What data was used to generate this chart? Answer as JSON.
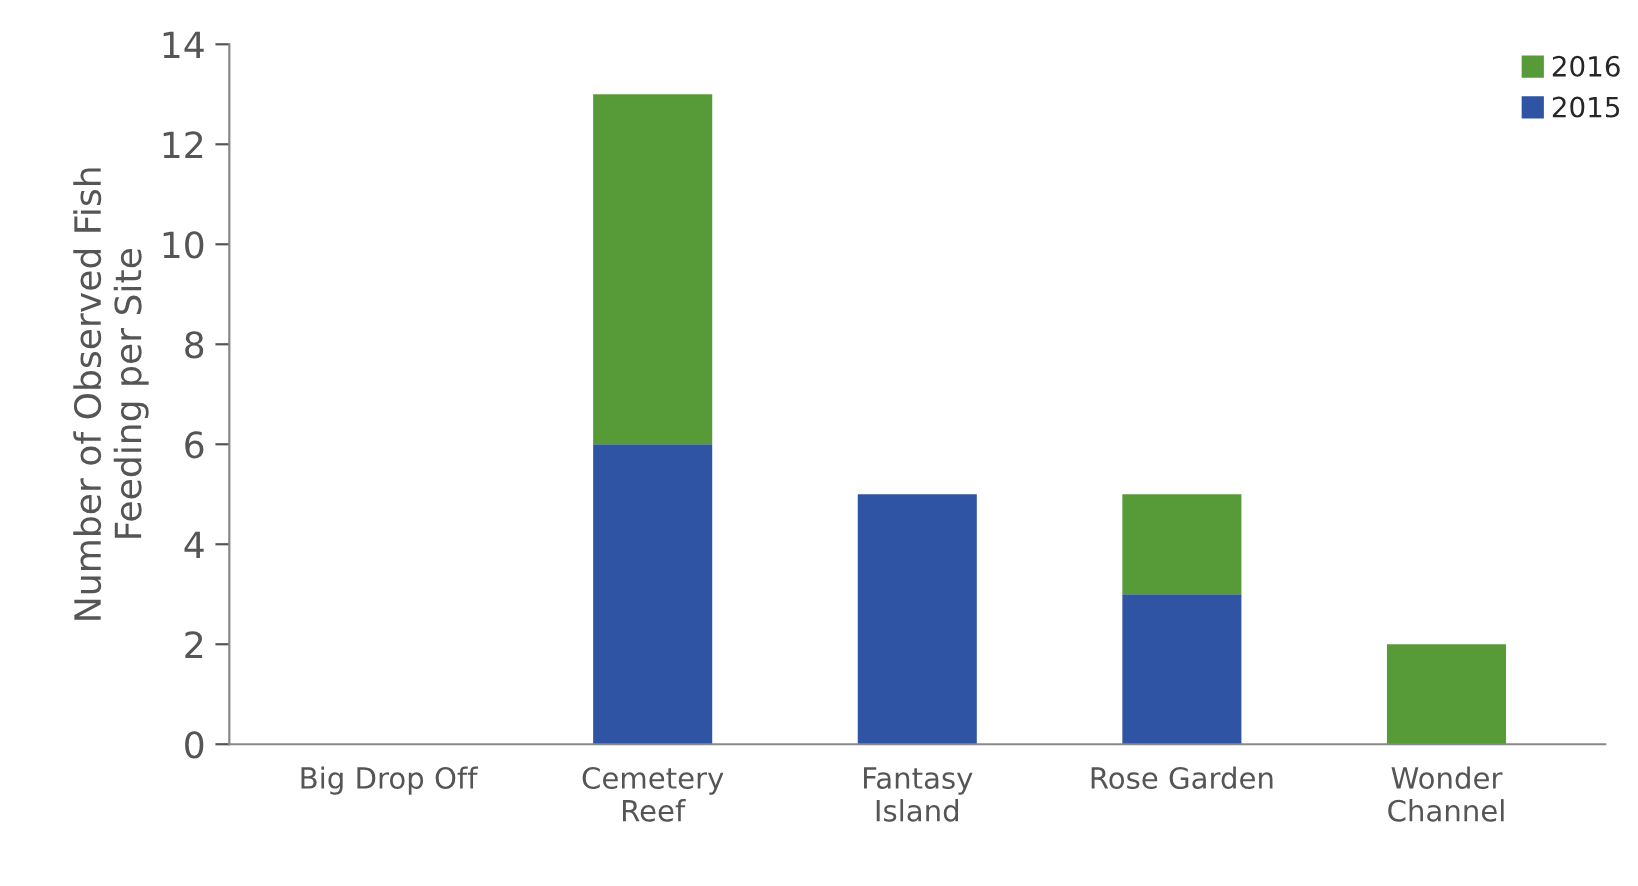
{
  "chart_data": {
    "type": "bar",
    "stacked": true,
    "categories": [
      "Big Drop Off",
      "Cemetery\nReef",
      "Fantasy\nIsland",
      "Rose Garden",
      "Wonder\nChannel"
    ],
    "series": [
      {
        "name": "2015",
        "color": "#2f54a3",
        "values": [
          0,
          6,
          5,
          3,
          0
        ]
      },
      {
        "name": "2016",
        "color": "#579a38",
        "values": [
          0,
          7,
          0,
          2,
          2
        ]
      }
    ],
    "ylabel": "Number of Observed Fish\nFeeding per Site",
    "ylim": [
      0,
      14
    ],
    "yticks": [
      0,
      2,
      4,
      6,
      8,
      10,
      12,
      14
    ],
    "grid": false,
    "legend": "top right"
  }
}
